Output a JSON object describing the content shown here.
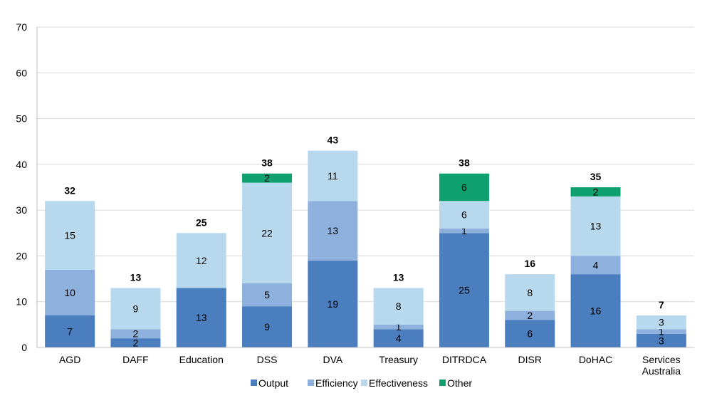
{
  "chart_data": {
    "type": "bar",
    "stacked": true,
    "title": "",
    "xlabel": "",
    "ylabel": "",
    "ylim": [
      0,
      70
    ],
    "yticks": [
      0,
      10,
      20,
      30,
      40,
      50,
      60,
      70
    ],
    "grid": true,
    "legend_position": "bottom",
    "categories": [
      [
        "AGD"
      ],
      [
        "DAFF"
      ],
      [
        "Education"
      ],
      [
        "DSS"
      ],
      [
        "DVA"
      ],
      [
        "Treasury"
      ],
      [
        "DITRDCA"
      ],
      [
        "DISR"
      ],
      [
        "DoHAC"
      ],
      [
        "Services",
        "Australia"
      ]
    ],
    "series": [
      {
        "name": "Output",
        "color": "#4a7ebf",
        "values": [
          7,
          2,
          13,
          9,
          19,
          4,
          25,
          6,
          16,
          3
        ]
      },
      {
        "name": "Efficiency",
        "color": "#8db0dc",
        "values": [
          10,
          2,
          0,
          5,
          13,
          1,
          1,
          2,
          4,
          1
        ]
      },
      {
        "name": "Effectiveness",
        "color": "#b8d9ed",
        "values": [
          15,
          9,
          12,
          22,
          11,
          8,
          6,
          8,
          13,
          3
        ]
      },
      {
        "name": "Other",
        "color": "#0fa06f",
        "values": [
          0,
          0,
          0,
          2,
          0,
          0,
          6,
          0,
          2,
          0
        ]
      }
    ],
    "totals": [
      32,
      13,
      25,
      38,
      43,
      13,
      38,
      16,
      35,
      7
    ]
  }
}
